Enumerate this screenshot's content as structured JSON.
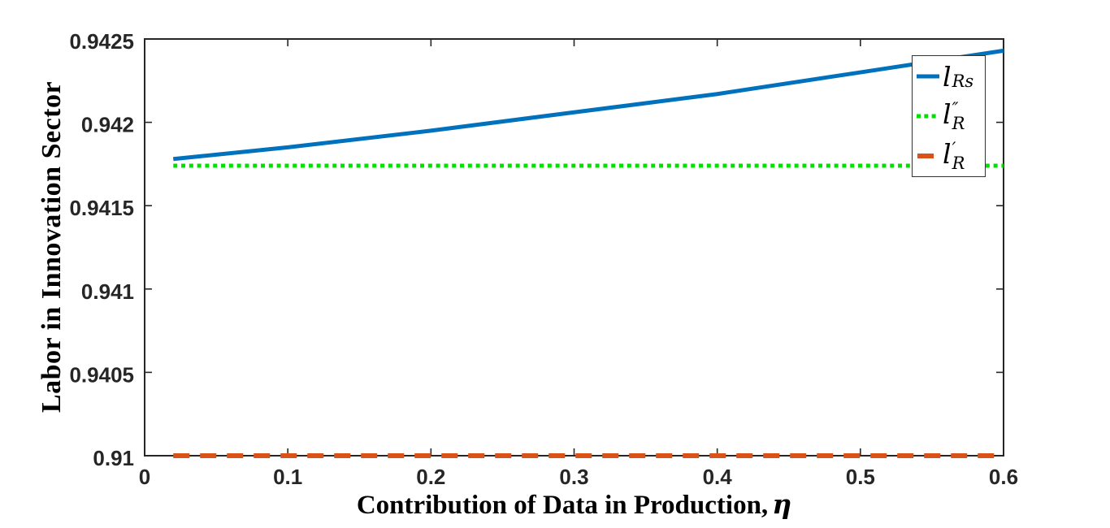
{
  "chart_data": {
    "type": "line",
    "title": "",
    "xlabel_text": "Contribution of Data in Production,",
    "xlabel_symbol": "η",
    "ylabel": "Labor in Innovation Sector",
    "xlim": [
      0,
      0.6
    ],
    "x_ticks": {
      "values": [
        0,
        0.1,
        0.2,
        0.3,
        0.4,
        0.5,
        0.6
      ],
      "labels": [
        "0",
        "0.1",
        "0.2",
        "0.3",
        "0.4",
        "0.5",
        "0.6"
      ]
    },
    "y_ticks": {
      "values": [
        0.91,
        0.9405,
        0.941,
        0.9415,
        0.942,
        0.9425
      ],
      "labels": [
        "0.91",
        "0.9405",
        "0.941",
        "0.9415",
        "0.942",
        "0.9425"
      ],
      "spacing": "uniform"
    },
    "grid": false,
    "background": "#ffffff",
    "axis_color": "#262626",
    "label_color": "#000000",
    "legend": {
      "position": "northeast",
      "border_color": "#333333"
    },
    "series": [
      {
        "name": "l_Rs",
        "label": {
          "base": "l",
          "sup": "",
          "sub": "Rs"
        },
        "color": "#0072BD",
        "line_style": "solid",
        "line_width": 5,
        "x": [
          0.02,
          0.1,
          0.2,
          0.3,
          0.4,
          0.5,
          0.6
        ],
        "y": [
          0.94178,
          0.94185,
          0.94195,
          0.94206,
          0.94217,
          0.9423,
          0.94243
        ]
      },
      {
        "name": "l_R_double_prime",
        "label": {
          "base": "l",
          "sup": "″",
          "sub": "R"
        },
        "color": "#00E100",
        "line_style": "dotted",
        "line_width": 5,
        "x": [
          0.02,
          0.6
        ],
        "y": [
          0.94174,
          0.94174
        ]
      },
      {
        "name": "l_R_prime",
        "label": {
          "base": "l",
          "sup": "′",
          "sub": "R"
        },
        "color": "#D95319",
        "line_style": "dashed",
        "line_width": 6,
        "x": [
          0.02,
          0.6
        ],
        "y": [
          0.91,
          0.91
        ]
      }
    ]
  }
}
